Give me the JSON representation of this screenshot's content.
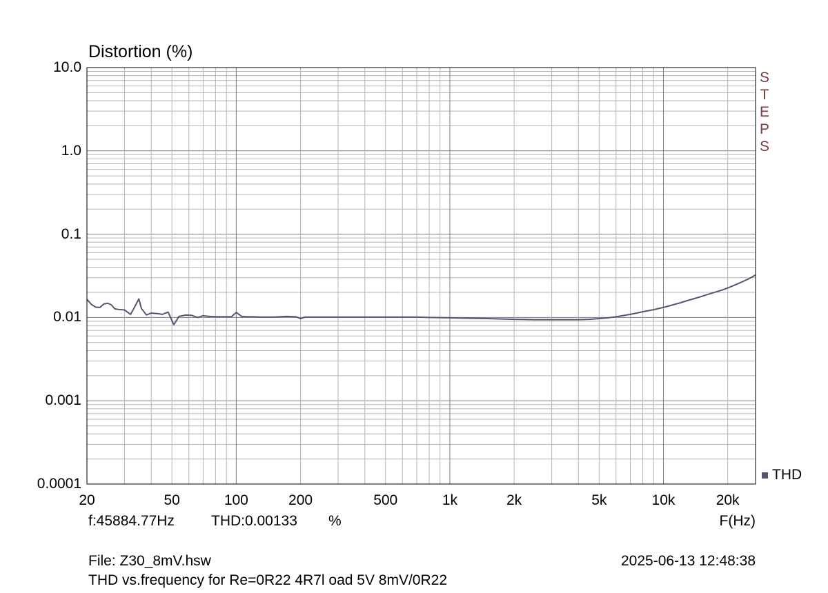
{
  "chart_data": {
    "type": "line",
    "title": "Distortion (%)",
    "xlabel": "F(Hz)",
    "ylabel": "",
    "x_scale": "log",
    "y_scale": "log",
    "xlim": [
      20,
      27000
    ],
    "ylim": [
      0.0001,
      10.0
    ],
    "grid": true,
    "y_ticks": [
      {
        "value": 10.0,
        "label": "10.0"
      },
      {
        "value": 1.0,
        "label": "1.0"
      },
      {
        "value": 0.1,
        "label": "0.1"
      },
      {
        "value": 0.01,
        "label": "0.01"
      },
      {
        "value": 0.001,
        "label": "0.001"
      },
      {
        "value": 0.0001,
        "label": "0.0001"
      }
    ],
    "x_ticks": [
      {
        "value": 20,
        "label": "20"
      },
      {
        "value": 50,
        "label": "50"
      },
      {
        "value": 100,
        "label": "100"
      },
      {
        "value": 200,
        "label": "200"
      },
      {
        "value": 500,
        "label": "500"
      },
      {
        "value": 1000,
        "label": "1k"
      },
      {
        "value": 2000,
        "label": "2k"
      },
      {
        "value": 5000,
        "label": "5k"
      },
      {
        "value": 10000,
        "label": "10k"
      },
      {
        "value": 20000,
        "label": "20k"
      }
    ],
    "legend_position": "bottom-right",
    "series": [
      {
        "name": "THD",
        "color": "#555570",
        "x": [
          20,
          21,
          22,
          23,
          24,
          25,
          26,
          27,
          28,
          30,
          32,
          33,
          35,
          36,
          38,
          40,
          43,
          45,
          48,
          51,
          54,
          58,
          62,
          66,
          70,
          75,
          80,
          85,
          90,
          95,
          100,
          106,
          112,
          120,
          130,
          150,
          170,
          190,
          200,
          210,
          250,
          300,
          400,
          500,
          600,
          700,
          800,
          1000,
          1200,
          1500,
          1700,
          2000,
          2500,
          3000,
          3500,
          4000,
          4500,
          5000,
          5500,
          6000,
          7000,
          7500,
          8000,
          9000,
          10000,
          11000,
          12000,
          13000,
          14000,
          15000,
          16000,
          17000,
          18000,
          19000,
          20000,
          21000,
          22000,
          23000,
          24000,
          25000,
          26000,
          27000
        ],
        "values": [
          0.0165,
          0.0143,
          0.0133,
          0.0132,
          0.0145,
          0.0148,
          0.0142,
          0.0127,
          0.0125,
          0.0123,
          0.0109,
          0.0125,
          0.0167,
          0.0128,
          0.0107,
          0.0113,
          0.0111,
          0.0109,
          0.0116,
          0.0082,
          0.0103,
          0.0107,
          0.0106,
          0.01,
          0.0105,
          0.0103,
          0.0102,
          0.0102,
          0.0102,
          0.0102,
          0.0115,
          0.0103,
          0.0102,
          0.0102,
          0.0101,
          0.0101,
          0.0103,
          0.0102,
          0.0097,
          0.0101,
          0.0101,
          0.0101,
          0.0101,
          0.0101,
          0.0101,
          0.0101,
          0.01,
          0.0099,
          0.0098,
          0.0097,
          0.0096,
          0.0095,
          0.0094,
          0.0094,
          0.0094,
          0.0094,
          0.0095,
          0.0097,
          0.0099,
          0.0102,
          0.0109,
          0.0113,
          0.0117,
          0.0124,
          0.0132,
          0.0141,
          0.015,
          0.016,
          0.0169,
          0.0178,
          0.0188,
          0.0197,
          0.0206,
          0.0215,
          0.0226,
          0.0238,
          0.025,
          0.0263,
          0.0276,
          0.029,
          0.0306,
          0.0325
        ]
      }
    ]
  },
  "overlay_label": [
    "S",
    "T",
    "E",
    "P",
    "S"
  ],
  "readout": {
    "freq": "f:45884.77Hz",
    "thd": "THD:0.00133",
    "unit": "%"
  },
  "footer": {
    "file": "File: Z30_8mV.hsw",
    "timestamp": "2025-06-13 12:48:38",
    "description": "THD vs.frequency for Re=0R22 4R7l oad 5V 8mV/0R22"
  },
  "colors": {
    "grid": "#b4b4b4",
    "grid_major": "#7a7a7a",
    "frame": "#000000",
    "steps": "#7a3b3b"
  }
}
